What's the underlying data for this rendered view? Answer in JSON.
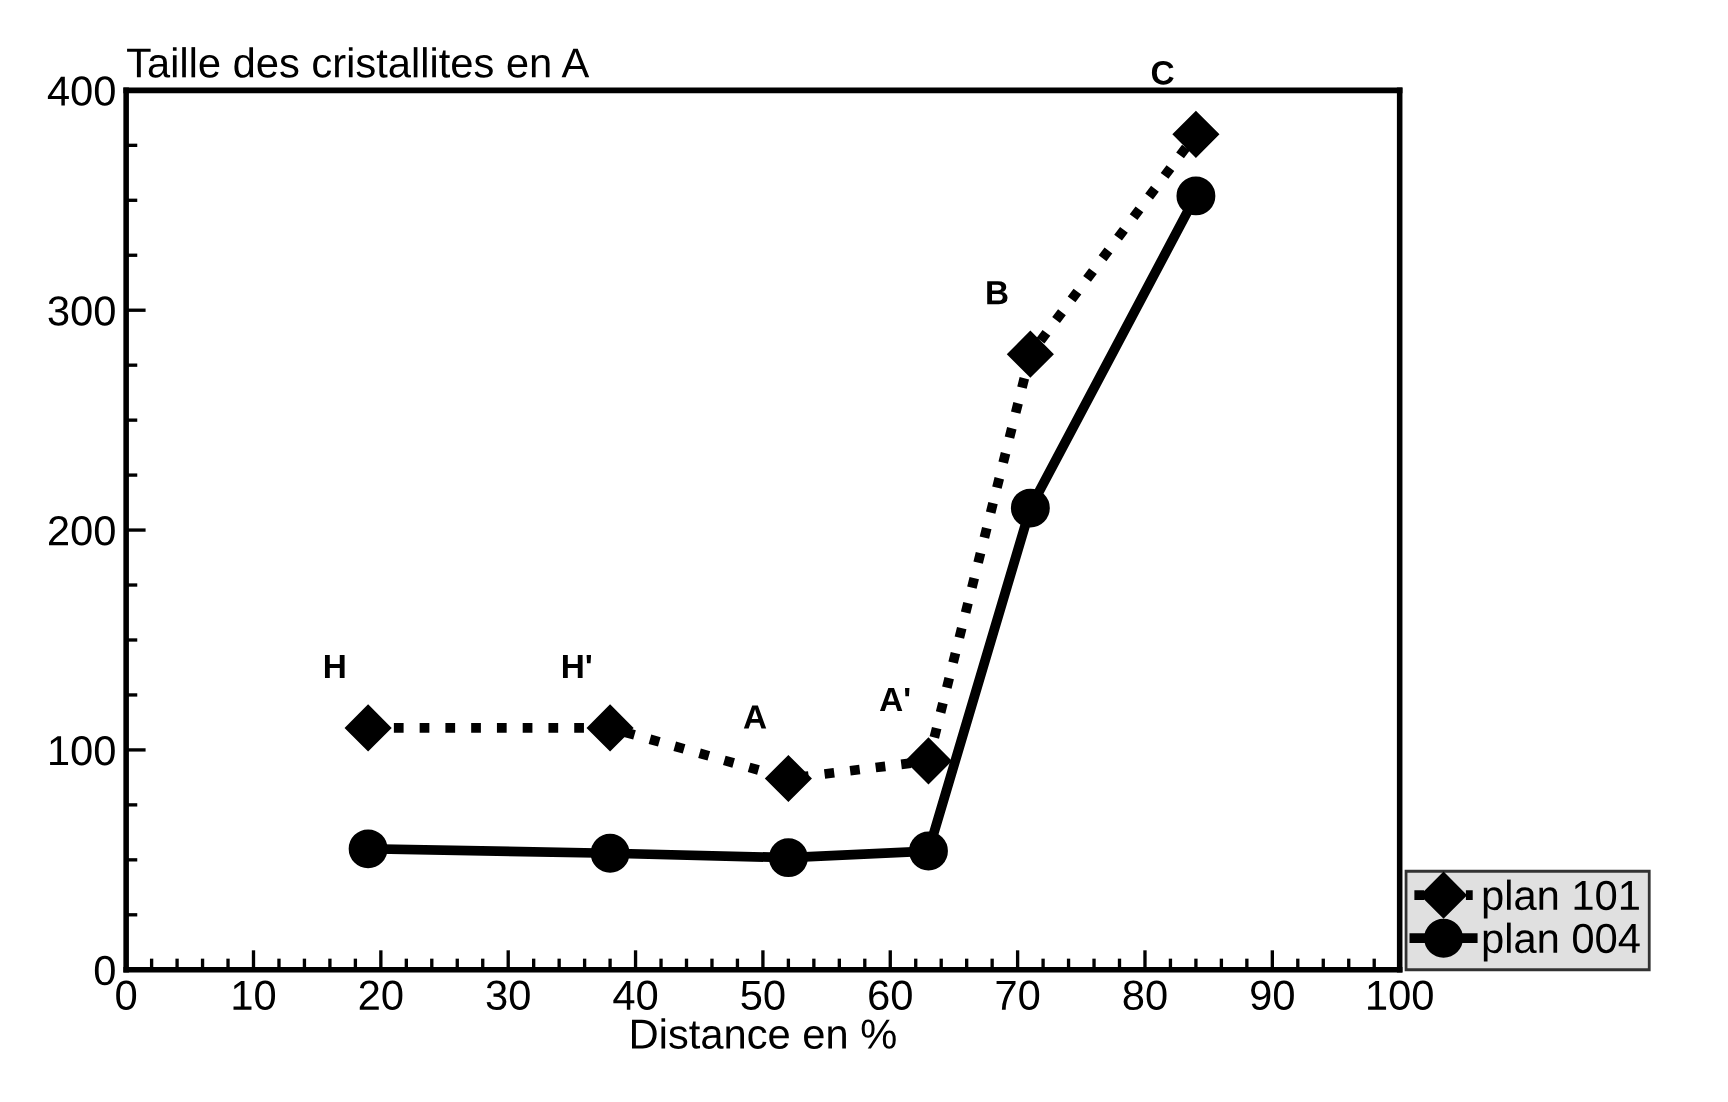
{
  "chart_data": {
    "type": "line",
    "title": "Taille des cristallites en A",
    "xlabel": "Distance en %",
    "x": [
      19,
      38,
      52,
      63,
      71,
      84
    ],
    "series": [
      {
        "name": "plan 101",
        "color": "#000000",
        "marker": "diamond",
        "line_style": "dotted",
        "values": [
          110,
          110,
          87,
          95,
          280,
          380
        ]
      },
      {
        "name": "plan 004",
        "color": "#000000",
        "marker": "circle",
        "line_style": "solid",
        "values": [
          55,
          53,
          51,
          54,
          210,
          352
        ]
      }
    ],
    "annotations": [
      {
        "text": "H",
        "x": 19,
        "y": 110
      },
      {
        "text": "H'",
        "x": 38,
        "y": 110
      },
      {
        "text": "A",
        "x": 52,
        "y": 87
      },
      {
        "text": "A'",
        "x": 63,
        "y": 95
      },
      {
        "text": "B",
        "x": 71,
        "y": 280
      },
      {
        "text": "C",
        "x": 84,
        "y": 380
      }
    ],
    "xlim": [
      0,
      100
    ],
    "xticks": [
      0,
      10,
      20,
      30,
      40,
      50,
      60,
      70,
      80,
      90,
      100
    ],
    "ylim": [
      0,
      400
    ],
    "yticks": [
      0,
      100,
      200,
      300,
      400
    ],
    "grid": false,
    "legend": "bottom right"
  }
}
